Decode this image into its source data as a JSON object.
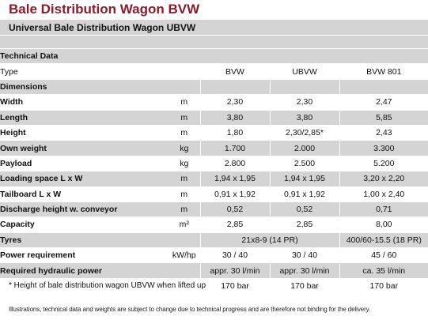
{
  "title": "Bale Distribution Wagon BVW",
  "subtitle": "Universal Bale Distribution Wagon UBVW",
  "section": "Technical Data",
  "rows": [
    {
      "label": "Type",
      "unit": "",
      "bvw": "BVW",
      "ubvw": "UBVW",
      "bvw801": "BVW 801",
      "shade": "white",
      "bold": false
    },
    {
      "label": "Dimensions",
      "unit": "",
      "bvw": "",
      "ubvw": "",
      "bvw801": "",
      "shade": "grey",
      "bold": true
    },
    {
      "label": "Width",
      "unit": "m",
      "bvw": "2,30",
      "ubvw": "2,30",
      "bvw801": "2,47",
      "shade": "white",
      "bold": true
    },
    {
      "label": "Length",
      "unit": "m",
      "bvw": "3,80",
      "ubvw": "3,80",
      "bvw801": "5,85",
      "shade": "grey",
      "bold": true
    },
    {
      "label": "Height",
      "unit": "m",
      "bvw": "1,80",
      "ubvw": "2,30/2,85*",
      "bvw801": "2,43",
      "shade": "white",
      "bold": true
    },
    {
      "label": "Own weight",
      "unit": "kg",
      "bvw": "1.700",
      "ubvw": "2.000",
      "bvw801": "3.300",
      "shade": "grey",
      "bold": true
    },
    {
      "label": "Payload",
      "unit": "kg",
      "bvw": "2.800",
      "ubvw": "2.500",
      "bvw801": "5.200",
      "shade": "white",
      "bold": true
    },
    {
      "label": "Loading space L x W",
      "unit": "m",
      "bvw": "1,94 x 1,95",
      "ubvw": "1,94 x 1,95",
      "bvw801": "3,20 x 2,20",
      "shade": "grey",
      "bold": true
    },
    {
      "label": "Tailboard L x W",
      "unit": "m",
      "bvw": "0,91 x 1,92",
      "ubvw": "0,91 x 1,92",
      "bvw801": "1,00 x 2,40",
      "shade": "white",
      "bold": true
    },
    {
      "label": "Discharge height w. conveyor",
      "unit": "m",
      "bvw": "0,52",
      "ubvw": "0,52",
      "bvw801": "0,71",
      "shade": "grey",
      "bold": true
    },
    {
      "label": "Capacity",
      "unit": "m²",
      "bvw": "2,85",
      "ubvw": "2,85",
      "bvw801": "8,00",
      "shade": "white",
      "bold": true
    },
    {
      "label": "Tyres",
      "unit": "",
      "bvw_ubvw": "21x8-9 (14 PR)",
      "bvw801": "400/60-15.5 (18 PR)",
      "shade": "grey",
      "bold": true,
      "merged": true
    },
    {
      "label": "Power requirement",
      "unit": "kW/hp",
      "bvw": "30 / 40",
      "ubvw": "30 / 40",
      "bvw801": "45 / 60",
      "shade": "white",
      "bold": true
    },
    {
      "label": "Required hydraulic power",
      "unit": "",
      "bvw": "appr. 30 l/min",
      "ubvw": "appr. 30 l/min",
      "bvw801": "ca. 35 l/min",
      "shade": "grey",
      "bold": true
    },
    {
      "label": "",
      "unit": "",
      "bvw": "170 bar",
      "ubvw": "170 bar",
      "bvw801": "170 bar",
      "shade": "white",
      "bold": false
    }
  ],
  "footnote": "* Height of bale distribution wagon UBVW when lifted up",
  "disclaimer": "Illustrations, technical data and weights are subject to change due to technical progress and are therefore not binding for the delivery."
}
